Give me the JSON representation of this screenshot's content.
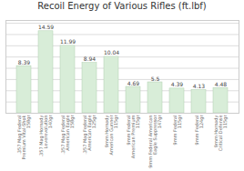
{
  "chart_data": {
    "type": "bar",
    "title": "Recoil Energy of Various Rifles (ft.lbf)",
    "categories": [
      ".357 Mag Federal\nPremium Vital-Shok\n158gr",
      ".357 Mag Hornady\nLeverevolution\n140gr",
      ".357 Mag Federal\nAmerican Eagle\n158gr",
      ".357 Mag Federal\nAmerican Eagle\n125gr",
      "9mm Hornady\nAmerican Gunner\n115gr",
      "9mm Federal\nAmerican Premium\n115gr",
      "9mm Federal American\nEagle Suppressor\n147gr",
      "9mm Federal\n115gr",
      "9mm Federal\n124gr",
      "9mm Hornady\nCritical Defense\n115gr"
    ],
    "values": [
      8.39,
      14.59,
      11.99,
      8.94,
      10.04,
      4.69,
      5.5,
      4.39,
      4.13,
      4.48
    ],
    "color": "#d8edd8",
    "ylim": [
      0,
      16.5
    ],
    "yticks": [
      0,
      2,
      4,
      6,
      8,
      10,
      12,
      14,
      16
    ],
    "grid": true,
    "data_labels": true,
    "tick_labels": "x"
  }
}
